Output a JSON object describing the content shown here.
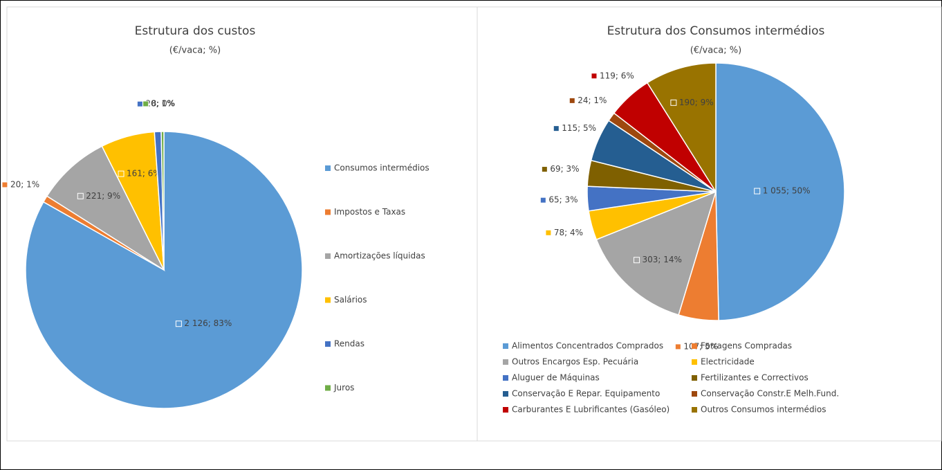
{
  "chart_data": [
    {
      "type": "pie",
      "title": "Estrutura dos custos",
      "subtitle": "(€/vaca; %)",
      "categories": [
        "Consumos intermédios",
        "Impostos e Taxas",
        "Amortizações líquidas",
        "Salários",
        "Rendas",
        "Juros"
      ],
      "values": [
        2126,
        20,
        221,
        161,
        20,
        8
      ],
      "value_labels": [
        "2 126; 83%",
        "20; 1%",
        "221; 9%",
        "161; 6%",
        "20; 1%",
        "8; 0%"
      ],
      "colors": [
        "#5b9bd5",
        "#ed7d31",
        "#a5a5a5",
        "#ffc000",
        "#4472c4",
        "#70ad47"
      ],
      "legend": "right"
    },
    {
      "type": "pie",
      "title": "Estrutura dos Consumos intermédios",
      "subtitle": "(€/vaca; %)",
      "categories": [
        "Alimentos Concentrados Comprados",
        "Forragens Compradas",
        "Outros Encargos Esp. Pecuária",
        "Electricidade",
        "Aluguer de Máquinas",
        "Fertilizantes e Correctivos",
        "Conservação  E Repar. Equipamento",
        "Conservação  Constr.E Melh.Fund.",
        "Carburantes E Lubrificantes (Gasóleo)",
        "Outros Consumos intermédios"
      ],
      "values": [
        1055,
        107,
        303,
        78,
        65,
        69,
        115,
        24,
        119,
        190
      ],
      "value_labels": [
        "1 055; 50%",
        "107; 5%",
        "303; 14%",
        "78; 4%",
        "65; 3%",
        "69; 3%",
        "115; 5%",
        "24; 1%",
        "119; 6%",
        "190; 9%"
      ],
      "colors": [
        "#5b9bd5",
        "#ed7d31",
        "#a5a5a5",
        "#ffc000",
        "#4472c4",
        "#7f6000",
        "#255e91",
        "#9e480e",
        "#c00000",
        "#997300"
      ],
      "legend": "bottom"
    }
  ]
}
